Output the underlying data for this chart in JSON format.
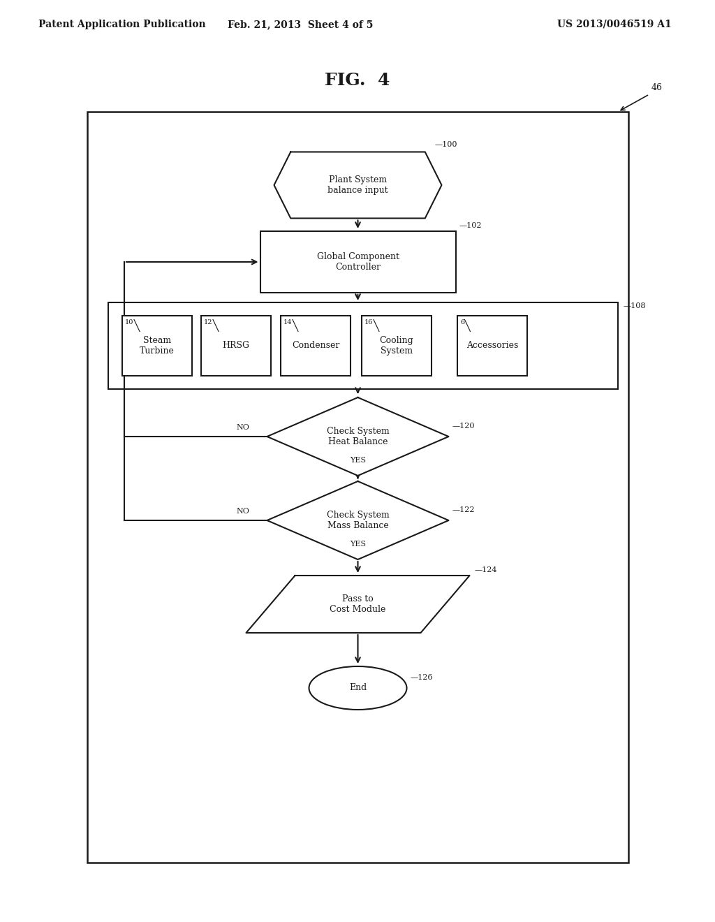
{
  "bg_color": "#ffffff",
  "header_left": "Patent Application Publication",
  "header_center": "Feb. 21, 2013  Sheet 4 of 5",
  "header_right": "US 2013/0046519 A1",
  "fig_title": "FIG.  4",
  "line_color": "#1a1a1a",
  "text_color": "#1a1a1a",
  "font_size_header": 10,
  "font_size_fig": 18,
  "font_size_node": 9,
  "font_size_ref": 8,
  "font_size_label": 8
}
